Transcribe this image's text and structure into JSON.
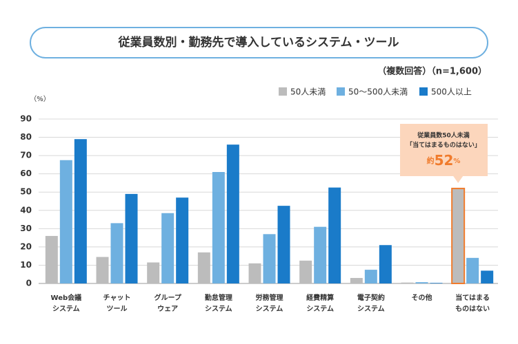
{
  "chart_data": {
    "type": "bar",
    "title": "従業員数別・勤務先で導入しているシステム・ツール",
    "subtitle": "（複数回答）（n=1,600）",
    "y_label": "（%）",
    "categories": [
      [
        "Web会議",
        "システム"
      ],
      [
        "チャット",
        "ツール"
      ],
      [
        "グループ",
        "ウェア"
      ],
      [
        "勤怠管理",
        "システム"
      ],
      [
        "労務管理",
        "システム"
      ],
      [
        "経費精算",
        "システム"
      ],
      [
        "電子契約",
        "システム"
      ],
      [
        "その他"
      ],
      [
        "当てはまる",
        "ものはない"
      ]
    ],
    "series": [
      {
        "name": "50人未満",
        "color": "#bcbcbc",
        "values": [
          26,
          14.5,
          11.5,
          17,
          11,
          12.5,
          3,
          0.5,
          52
        ]
      },
      {
        "name": "50〜500人未満",
        "color": "#6eb0e0",
        "values": [
          67.5,
          33,
          38.5,
          61,
          27,
          31,
          7.5,
          0.7,
          14
        ]
      },
      {
        "name": "500人以上",
        "color": "#1a7bc9",
        "values": [
          79,
          49,
          47,
          76,
          42.5,
          52.5,
          21,
          0.3,
          7
        ]
      }
    ],
    "ylim": [
      0,
      90
    ],
    "yticks": [
      0,
      10,
      20,
      30,
      40,
      50,
      60,
      70,
      80,
      90
    ],
    "grid": true,
    "highlight": {
      "series": 0,
      "category": 8,
      "color": "#f07b2c"
    },
    "annotation": {
      "lines": [
        "従業員数50人未満",
        "「当てはまるものはない」"
      ],
      "prefix": "約",
      "value": 52,
      "suffix": "%"
    }
  }
}
